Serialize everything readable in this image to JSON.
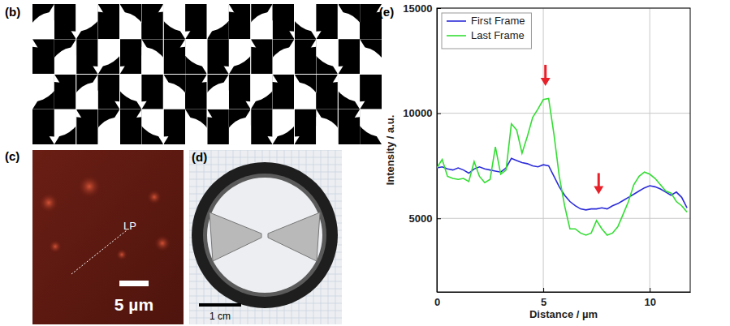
{
  "panels": [
    {
      "label": "(b)"
    },
    {
      "label": "(c)",
      "annotation": "LP",
      "scale_bar": "5 µm"
    },
    {
      "label": "(d)",
      "scale_bar": "1 cm"
    }
  ],
  "chart_data": {
    "type": "line",
    "panel_label": "(e)",
    "x_label": "Distance / µm",
    "y_label": "Intensity / a.u.",
    "x": [
      0,
      0.25,
      0.5,
      0.75,
      1,
      1.25,
      1.5,
      1.75,
      2,
      2.25,
      2.5,
      2.75,
      3,
      3.25,
      3.5,
      3.75,
      4,
      4.25,
      4.5,
      4.75,
      5,
      5.25,
      5.5,
      5.75,
      6,
      6.25,
      6.5,
      6.75,
      7,
      7.25,
      7.5,
      7.75,
      8,
      8.25,
      8.5,
      8.75,
      9,
      9.25,
      9.5,
      9.75,
      10,
      10.25,
      10.5,
      10.75,
      11,
      11.25,
      11.5,
      11.75
    ],
    "series": [
      {
        "name": "First Frame",
        "color": "#2b2bd9",
        "values": [
          7400,
          7450,
          7350,
          7300,
          7400,
          7300,
          7150,
          7350,
          7450,
          7350,
          7300,
          7250,
          7200,
          7400,
          7850,
          7750,
          7650,
          7600,
          7500,
          7450,
          7550,
          7500,
          7000,
          6500,
          6100,
          5800,
          5600,
          5450,
          5400,
          5450,
          5450,
          5500,
          5450,
          5600,
          5700,
          5850,
          6000,
          6150,
          6300,
          6450,
          6550,
          6500,
          6400,
          6250,
          6100,
          6250,
          6000,
          5500
        ]
      },
      {
        "name": "Last Frame",
        "color": "#33dd33",
        "values": [
          7400,
          7800,
          7000,
          6900,
          6850,
          6900,
          6750,
          7700,
          7000,
          6700,
          6850,
          8400,
          7100,
          7300,
          9500,
          9200,
          8100,
          8900,
          9800,
          10200,
          10650,
          10700,
          9000,
          7000,
          5600,
          4500,
          4500,
          4300,
          4200,
          4300,
          4900,
          4500,
          4200,
          4300,
          4600,
          5200,
          5800,
          6600,
          7000,
          7200,
          7100,
          6900,
          6600,
          6300,
          6200,
          5800,
          5600,
          5300
        ]
      }
    ],
    "xlim": [
      0,
      11.9
    ],
    "xticks": [
      0,
      5,
      10
    ],
    "ylim": [
      1500,
      15000
    ],
    "yticks": [
      5000,
      10000,
      15000
    ],
    "grid": true,
    "legend": "upper left",
    "arrows": [
      {
        "x": 5.1,
        "y": 11300
      },
      {
        "x": 7.6,
        "y": 6150
      }
    ]
  }
}
